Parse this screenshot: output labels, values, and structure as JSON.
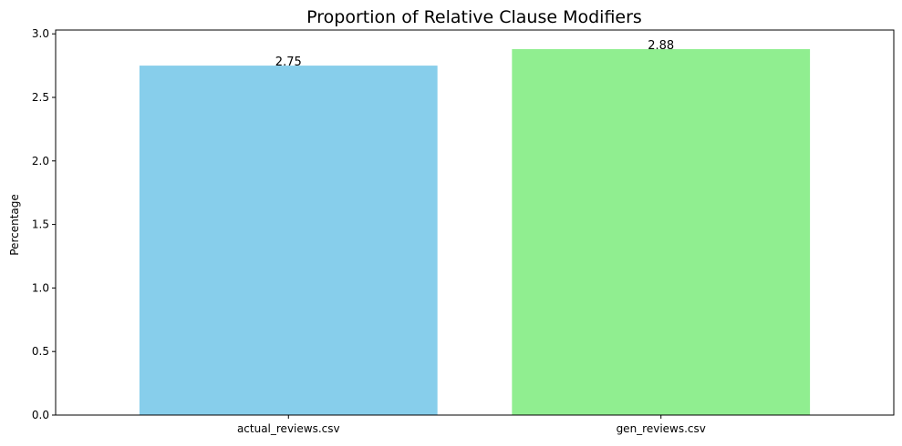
{
  "chart_data": {
    "type": "bar",
    "title": "Proportion of Relative Clause Modifiers",
    "xlabel": "",
    "ylabel": "Percentage",
    "categories": [
      "actual_reviews.csv",
      "gen_reviews.csv"
    ],
    "values": [
      2.75,
      2.88
    ],
    "value_labels": [
      "2.75",
      "2.88"
    ],
    "bar_colors": [
      "#87ceeb",
      "#90ee90"
    ],
    "ylim": [
      0,
      3.03
    ],
    "yticks": [
      0.0,
      0.5,
      1.0,
      1.5,
      2.0,
      2.5,
      3.0
    ],
    "ytick_labels": [
      "0.0",
      "0.5",
      "1.0",
      "1.5",
      "2.0",
      "2.5",
      "3.0"
    ],
    "grid": false,
    "legend": "none"
  }
}
